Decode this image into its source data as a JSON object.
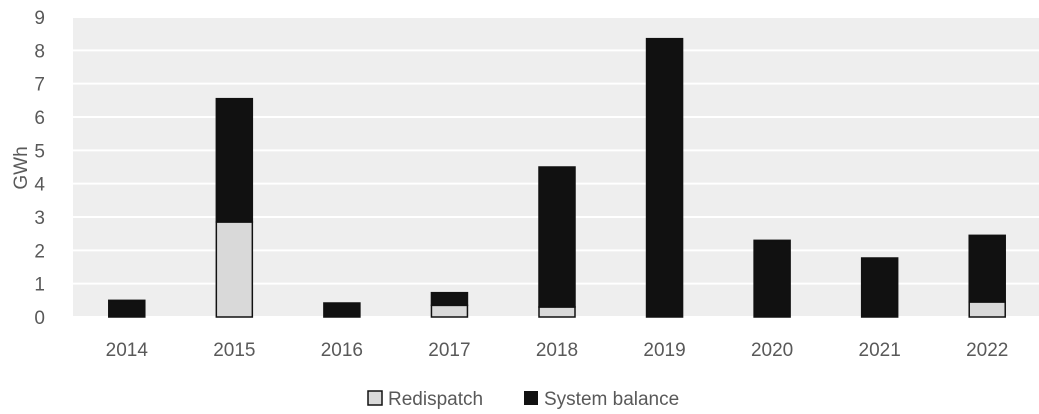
{
  "chart_data": {
    "type": "bar",
    "stacked": true,
    "categories": [
      "2014",
      "2015",
      "2016",
      "2017",
      "2018",
      "2019",
      "2020",
      "2021",
      "2022"
    ],
    "series": [
      {
        "name": "Redispatch",
        "values": [
          0,
          2.85,
          0,
          0.35,
          0.3,
          0,
          0,
          0,
          0.45
        ],
        "color": "#d9d9d9"
      },
      {
        "name": "System balance",
        "values": [
          0.5,
          3.7,
          0.42,
          0.38,
          4.2,
          8.35,
          2.3,
          1.77,
          2.0
        ],
        "color": "#111111"
      }
    ],
    "title": "",
    "xlabel": "",
    "ylabel": "GWh",
    "ylim": [
      0,
      9
    ],
    "yticks": [
      "0",
      "1",
      "2",
      "3",
      "4",
      "5",
      "6",
      "7",
      "8",
      "9"
    ],
    "grid": true,
    "plot_background": "#eeeeee",
    "legend_position": "bottom"
  }
}
